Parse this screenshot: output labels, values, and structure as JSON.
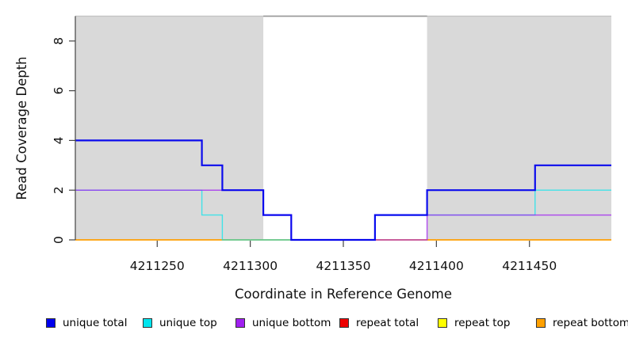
{
  "chart_data": {
    "type": "line",
    "subtype": "step",
    "title": "",
    "xlabel": "Coordinate in Reference Genome",
    "ylabel": "Read Coverage Depth",
    "xlim": [
      4211206,
      4211494
    ],
    "ylim": [
      0,
      9
    ],
    "x_ticks": [
      4211250,
      4211300,
      4211350,
      4211400,
      4211450
    ],
    "y_ticks": [
      0,
      2,
      4,
      6,
      8
    ],
    "grid": false,
    "legend_position": "bottom",
    "top_rule_y": 9,
    "shaded_region_color": "#d9d9d9",
    "shaded_regions": [
      {
        "x0": 4211206,
        "x1": 4211307
      },
      {
        "x0": 4211395,
        "x1": 4211494
      }
    ],
    "series": [
      {
        "name": "unique total",
        "color": "#0000ee",
        "steps": [
          [
            4211206,
            4
          ],
          [
            4211274,
            3
          ],
          [
            4211285,
            2
          ],
          [
            4211307,
            1
          ],
          [
            4211322,
            0
          ],
          [
            4211367,
            1
          ],
          [
            4211395,
            2
          ],
          [
            4211453,
            3
          ],
          [
            4211494,
            3
          ]
        ]
      },
      {
        "name": "unique top",
        "color": "#00e5ee",
        "steps": [
          [
            4211206,
            2
          ],
          [
            4211274,
            1
          ],
          [
            4211285,
            0
          ],
          [
            4211367,
            1
          ],
          [
            4211453,
            2
          ],
          [
            4211494,
            2
          ]
        ]
      },
      {
        "name": "unique bottom",
        "color": "#a020f0",
        "steps": [
          [
            4211206,
            2
          ],
          [
            4211307,
            1
          ],
          [
            4211322,
            0
          ],
          [
            4211395,
            1
          ],
          [
            4211494,
            1
          ]
        ]
      },
      {
        "name": "repeat total",
        "color": "#ee0000",
        "steps": [
          [
            4211206,
            0
          ],
          [
            4211494,
            0
          ]
        ]
      },
      {
        "name": "repeat top",
        "color": "#ffff00",
        "steps": [
          [
            4211206,
            0
          ],
          [
            4211494,
            0
          ]
        ]
      },
      {
        "name": "repeat bottom",
        "color": "#ffa000",
        "steps": [
          [
            4211206,
            0
          ],
          [
            4211494,
            0
          ]
        ]
      }
    ]
  },
  "legend": {
    "items": [
      {
        "label": "unique total",
        "color": "#0000ee"
      },
      {
        "label": "unique top",
        "color": "#00e5ee"
      },
      {
        "label": "unique bottom",
        "color": "#a020f0"
      },
      {
        "label": "repeat total",
        "color": "#ee0000"
      },
      {
        "label": "repeat top",
        "color": "#ffff00"
      },
      {
        "label": "repeat bottom",
        "color": "#ffa000"
      }
    ]
  }
}
